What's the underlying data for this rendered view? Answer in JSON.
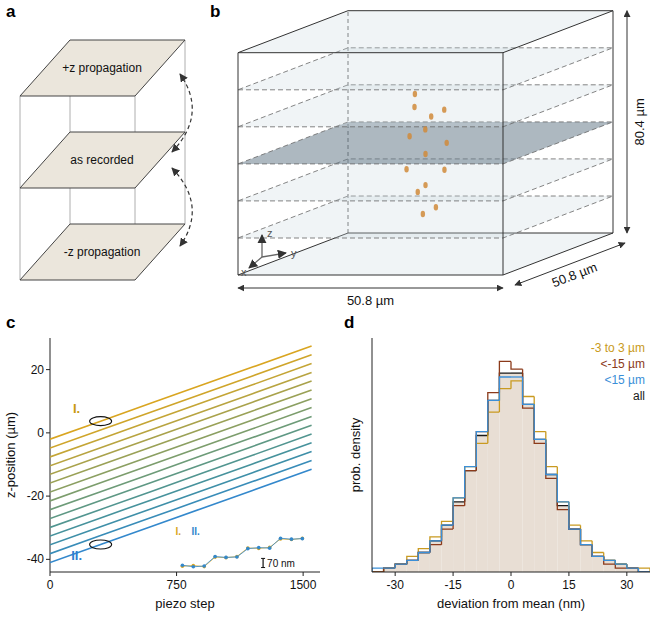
{
  "panels": {
    "a": {
      "letter": "a",
      "planes": [
        "+z propagation",
        "as recorded",
        "-z propagation"
      ]
    },
    "b": {
      "letter": "b",
      "x_size": 50.8,
      "y_size": 50.8,
      "z_size": 80.4,
      "x_label": "50.8 µm",
      "y_label": "50.8 µm",
      "z_label": "80.4 µm",
      "axis_labels": [
        "x",
        "y",
        "z"
      ],
      "slices": 7,
      "highlighted_slice": 3
    }
  },
  "chart_data": [
    {
      "panel": "c",
      "type": "line",
      "line_style": "solid",
      "x_label": "piezo step",
      "y_label": "z-position (µm)",
      "xlim": [
        0,
        1600
      ],
      "ylim": [
        -44,
        30
      ],
      "xticks": [
        0,
        750,
        1500
      ],
      "yticks": [
        -40,
        -20,
        0,
        20
      ],
      "x": [
        0,
        300,
        600,
        900,
        1200,
        1550
      ],
      "series": [
        {
          "color": "#d9a520",
          "values": [
            -2,
            3.7,
            9.4,
            15.1,
            20.8,
            27.5
          ]
        },
        {
          "color": "#cfa52a",
          "values": [
            -4.8,
            0.9,
            6.6,
            12.3,
            18,
            24.7
          ]
        },
        {
          "color": "#c4a535",
          "values": [
            -7.6,
            -1.9,
            3.8,
            9.5,
            15.2,
            21.9
          ]
        },
        {
          "color": "#b8a440",
          "values": [
            -10.4,
            -4.7,
            1,
            6.7,
            12.4,
            19.1
          ]
        },
        {
          "color": "#a9a24b",
          "values": [
            -13.1,
            -7.4,
            -1.7,
            4,
            9.7,
            16.4
          ]
        },
        {
          "color": "#9aa156",
          "values": [
            -15.9,
            -10.2,
            -4.5,
            1.2,
            6.9,
            13.6
          ]
        },
        {
          "color": "#8b9f61",
          "values": [
            -18.7,
            -13,
            -7.3,
            -1.6,
            4.1,
            10.8
          ]
        },
        {
          "color": "#7c9d6c",
          "values": [
            -21.5,
            -15.8,
            -10.1,
            -4.4,
            1.3,
            8
          ]
        },
        {
          "color": "#6d9b78",
          "values": [
            -24.3,
            -18.6,
            -12.9,
            -7.2,
            -1.5,
            5.2
          ]
        },
        {
          "color": "#5e9884",
          "values": [
            -27.1,
            -21.4,
            -15.7,
            -10,
            -4.3,
            2.4
          ]
        },
        {
          "color": "#519590",
          "values": [
            -29.9,
            -24.2,
            -18.5,
            -12.8,
            -7.1,
            -0.4
          ]
        },
        {
          "color": "#46929c",
          "values": [
            -32.6,
            -26.9,
            -21.2,
            -15.5,
            -9.8,
            -3.1
          ]
        },
        {
          "color": "#3e8fa8",
          "values": [
            -35.4,
            -29.7,
            -24,
            -18.3,
            -12.6,
            -5.9
          ]
        },
        {
          "color": "#388cb8",
          "values": [
            -38.2,
            -32.5,
            -26.8,
            -21.1,
            -15.4,
            -8.7
          ]
        },
        {
          "color": "#3388cc",
          "values": [
            -41,
            -35.3,
            -29.6,
            -23.9,
            -18.2,
            -11.5
          ]
        }
      ],
      "annotations": [
        {
          "text": "I.",
          "x": 300,
          "y": 3.7,
          "color": "#c99a10"
        },
        {
          "text": "II.",
          "x": 300,
          "y": -35.3,
          "color": "#2f7fd0"
        }
      ],
      "inset": {
        "x": [
          1,
          2,
          3,
          4,
          5,
          6,
          7,
          8,
          9,
          10,
          11,
          12
        ],
        "xlim": [
          0,
          13
        ],
        "ylim": [
          -20,
          320
        ],
        "series": [
          {
            "name": "I.",
            "color": "#d9a520",
            "values": [
              0,
              5,
              -3,
              70,
              66,
              74,
              140,
              137,
              145,
              210,
              205,
              214
            ]
          },
          {
            "name": "II.",
            "color": "#3388cc",
            "values": [
              8,
              -4,
              2,
              75,
              68,
              71,
              135,
              143,
              139,
              215,
              208,
              212
            ]
          }
        ],
        "scale_bar": 70,
        "scale_label": "70 nm"
      }
    },
    {
      "panel": "d",
      "type": "histogram",
      "legend": "upper right",
      "tick_labels": "x",
      "x_label": "deviation from mean (nm)",
      "y_label": "prob. density",
      "xlim": [
        -36,
        36
      ],
      "ylim": [
        0,
        0.06
      ],
      "xticks": [
        -30,
        -15,
        0,
        15,
        30
      ],
      "bins": [
        -36,
        -33,
        -30,
        -27,
        -24,
        -21,
        -18,
        -15,
        -12,
        -9,
        -6,
        -3,
        0,
        3,
        6,
        9,
        12,
        15,
        18,
        21,
        24,
        27,
        30,
        33,
        36
      ],
      "series": [
        {
          "name": "-3 to 3 µm",
          "type": "step",
          "color": "#c99a20",
          "values": [
            0,
            0.001,
            0.002,
            0.004,
            0.006,
            0.009,
            0.013,
            0.019,
            0.027,
            0.033,
            0.041,
            0.047,
            0.049,
            0.045,
            0.036,
            0.027,
            0.018,
            0.012,
            0.008,
            0.005,
            0.003,
            0.002,
            0.001,
            0.001
          ]
        },
        {
          "name": "<-15 µm",
          "type": "step",
          "color": "#8b3a1a",
          "values": [
            0,
            0.001,
            0.002,
            0.003,
            0.005,
            0.007,
            0.011,
            0.017,
            0.026,
            0.036,
            0.046,
            0.054,
            0.052,
            0.042,
            0.033,
            0.024,
            0.016,
            0.011,
            0.007,
            0.004,
            0.002,
            0.001,
            0.001,
            0
          ]
        },
        {
          "name": "<15 µm",
          "type": "step",
          "color": "#3a8fd8",
          "values": [
            0.001,
            0.001,
            0.002,
            0.003,
            0.005,
            0.008,
            0.012,
            0.019,
            0.027,
            0.036,
            0.044,
            0.05,
            0.05,
            0.043,
            0.034,
            0.025,
            0.018,
            0.011,
            0.007,
            0.004,
            0.003,
            0.002,
            0.001,
            0
          ]
        },
        {
          "name": "all",
          "type": "bar",
          "color": "#1a1a1a",
          "values": [
            0,
            0.001,
            0.002,
            0.003,
            0.005,
            0.008,
            0.012,
            0.018,
            0.026,
            0.035,
            0.044,
            0.051,
            0.051,
            0.043,
            0.034,
            0.025,
            0.017,
            0.011,
            0.007,
            0.004,
            0.003,
            0.002,
            0.001,
            0
          ]
        }
      ]
    }
  ]
}
